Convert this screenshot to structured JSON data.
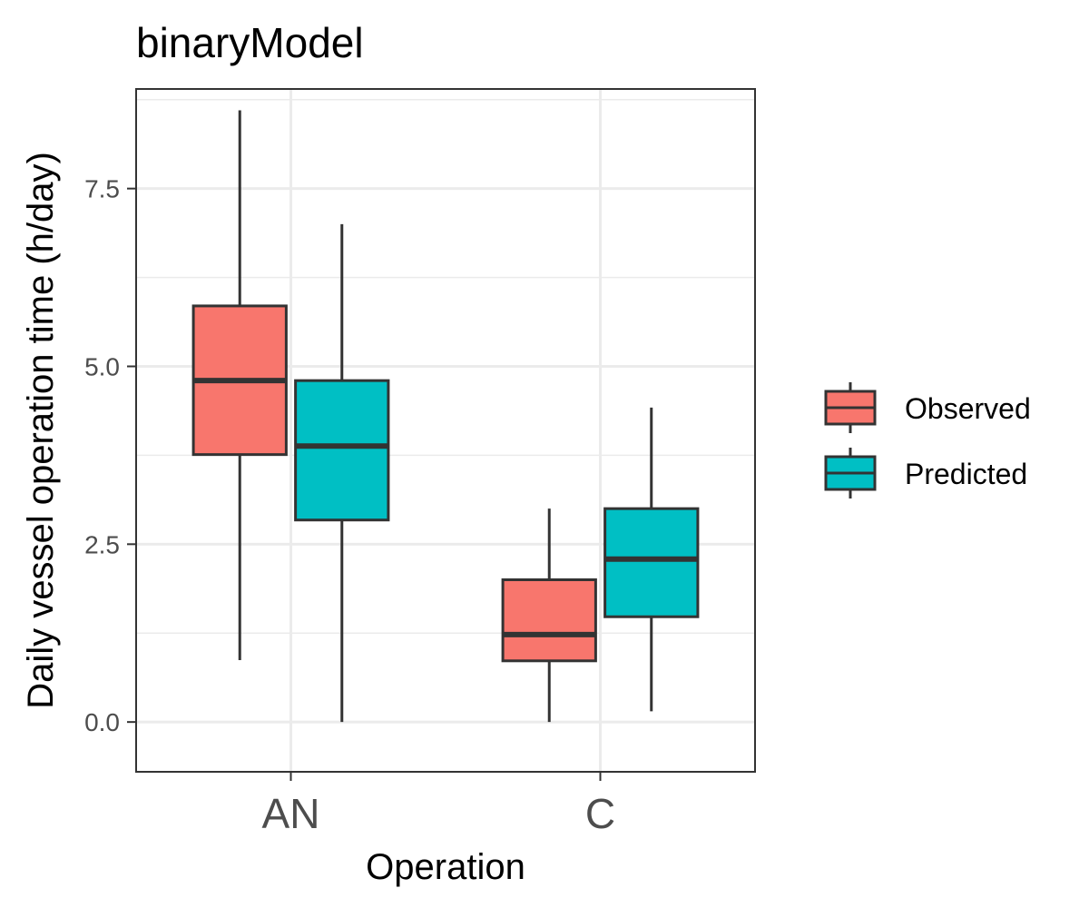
{
  "chart_data": {
    "type": "boxplot",
    "title": "binaryModel",
    "xlabel": "Operation",
    "ylabel": "Daily vessel operation time (h/day)",
    "ylim": [
      -0.7,
      8.9
    ],
    "yticks": [
      0.0,
      2.5,
      5.0,
      7.5
    ],
    "ytick_labels": [
      "0.0",
      "2.5",
      "5.0",
      "7.5"
    ],
    "grid": true,
    "legend_position": "right",
    "categories": [
      "AN",
      "C"
    ],
    "series": [
      {
        "name": "Observed",
        "color": "#F8766D",
        "boxes": [
          {
            "category": "AN",
            "whisker_low": 0.87,
            "q1": 3.76,
            "median": 4.8,
            "q3": 5.85,
            "whisker_high": 8.6
          },
          {
            "category": "C",
            "whisker_low": 0.0,
            "q1": 0.86,
            "median": 1.23,
            "q3": 2.0,
            "whisker_high": 3.0
          }
        ]
      },
      {
        "name": "Predicted",
        "color": "#00BFC4",
        "boxes": [
          {
            "category": "AN",
            "whisker_low": 0.0,
            "q1": 2.84,
            "median": 3.88,
            "q3": 4.8,
            "whisker_high": 7.0
          },
          {
            "category": "C",
            "whisker_low": 0.15,
            "q1": 1.48,
            "median": 2.29,
            "q3": 3.0,
            "whisker_high": 4.42
          }
        ]
      }
    ]
  }
}
